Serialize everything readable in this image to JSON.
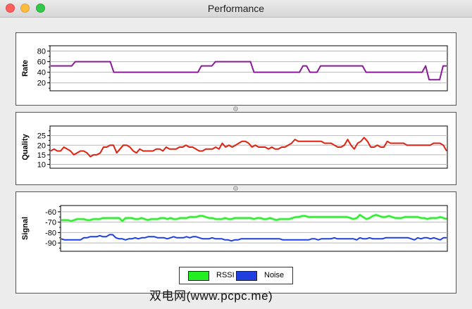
{
  "window": {
    "title": "Performance"
  },
  "legend": {
    "items": [
      {
        "label": "RSSI",
        "color": "#22ee22"
      },
      {
        "label": "Noise",
        "color": "#1f3fe0"
      }
    ]
  },
  "watermark": "双电网(www.pcpc.me)",
  "chart_data": [
    {
      "type": "line",
      "ylabel": "Rate",
      "yticks": [
        20,
        40,
        60,
        80
      ],
      "ylim": [
        5,
        90
      ],
      "grid": true,
      "series": [
        {
          "color": "#8a1a9a",
          "values": [
            52,
            52,
            52,
            52,
            52,
            52,
            52,
            60,
            60,
            60,
            60,
            60,
            60,
            60,
            60,
            60,
            60,
            60,
            40,
            40,
            40,
            40,
            40,
            40,
            40,
            40,
            40,
            40,
            40,
            40,
            40,
            40,
            40,
            40,
            40,
            40,
            40,
            40,
            40,
            40,
            40,
            40,
            40,
            52,
            52,
            52,
            52,
            60,
            60,
            60,
            60,
            60,
            60,
            60,
            60,
            60,
            60,
            60,
            40,
            40,
            40,
            40,
            40,
            40,
            40,
            40,
            40,
            40,
            40,
            40,
            40,
            40,
            52,
            52,
            40,
            40,
            40,
            52,
            52,
            52,
            52,
            52,
            52,
            52,
            52,
            52,
            52,
            52,
            52,
            52,
            40,
            40,
            40,
            40,
            40,
            40,
            40,
            40,
            40,
            40,
            40,
            40,
            40,
            40,
            40,
            40,
            40,
            52,
            26,
            26,
            26,
            26,
            52,
            52
          ]
        }
      ]
    },
    {
      "type": "line",
      "ylabel": "Quality",
      "yticks": [
        10,
        15,
        20,
        25
      ],
      "ylim": [
        8,
        30
      ],
      "grid": true,
      "series": [
        {
          "color": "#dd2211",
          "values": [
            17,
            18,
            17,
            17,
            19,
            18,
            17,
            15,
            16,
            17,
            17,
            16,
            14,
            15,
            15,
            16,
            19,
            19,
            20,
            20,
            16,
            18,
            20,
            20,
            19,
            17,
            16,
            18,
            17,
            17,
            17,
            17,
            18,
            18,
            17,
            19,
            18,
            18,
            18,
            19,
            19,
            20,
            19,
            19,
            18,
            17,
            17,
            18,
            18,
            18,
            19,
            18,
            21,
            19,
            20,
            19,
            20,
            21,
            22,
            22,
            21,
            19,
            20,
            19,
            19,
            19,
            18,
            19,
            18,
            18,
            19,
            19,
            20,
            21,
            23,
            22,
            22,
            22,
            22,
            22,
            22,
            22,
            22,
            21,
            21,
            21,
            20,
            19,
            19,
            20,
            23,
            20,
            18,
            21,
            22,
            24,
            22,
            19,
            19,
            20,
            19,
            19,
            22,
            21,
            21,
            21,
            21,
            21,
            20,
            20,
            20,
            20,
            20,
            20,
            20,
            20,
            21,
            21,
            21,
            20,
            17
          ]
        }
      ]
    },
    {
      "type": "line",
      "ylabel": "Signal",
      "yticks": [
        -60,
        -70,
        -80,
        -90
      ],
      "ylim": [
        -98,
        -54
      ],
      "grid": true,
      "series": [
        {
          "name": "RSSI",
          "color": "#22ee22",
          "values": [
            -68,
            -68,
            -68,
            -69,
            -68,
            -67,
            -67,
            -67,
            -68,
            -68,
            -67,
            -67,
            -67,
            -66,
            -66,
            -66,
            -66,
            -66,
            -66,
            -69,
            -66,
            -66,
            -66,
            -67,
            -67,
            -66,
            -67,
            -68,
            -67,
            -67,
            -67,
            -66,
            -66,
            -67,
            -66,
            -67,
            -67,
            -66,
            -66,
            -66,
            -65,
            -65,
            -65,
            -64,
            -64,
            -65,
            -66,
            -66,
            -67,
            -67,
            -67,
            -66,
            -67,
            -67,
            -66,
            -66,
            -66,
            -66,
            -66,
            -66,
            -67,
            -66,
            -66,
            -67,
            -67,
            -66,
            -67,
            -68,
            -67,
            -67,
            -67,
            -67,
            -66,
            -65,
            -65,
            -64,
            -64,
            -65,
            -65,
            -65,
            -65,
            -65,
            -65,
            -65,
            -65,
            -65,
            -65,
            -65,
            -65,
            -65,
            -66,
            -67,
            -66,
            -63,
            -65,
            -67,
            -66,
            -64,
            -63,
            -64,
            -65,
            -65,
            -64,
            -65,
            -66,
            -66,
            -66,
            -65,
            -65,
            -65,
            -65,
            -65,
            -66,
            -66,
            -67,
            -66,
            -66,
            -66,
            -65,
            -66,
            -67
          ]
        },
        {
          "name": "Noise",
          "color": "#1f3fe0",
          "values": [
            -86,
            -87,
            -87,
            -87,
            -87,
            -87,
            -87,
            -85,
            -85,
            -84,
            -84,
            -84,
            -83,
            -84,
            -84,
            -82,
            -82,
            -85,
            -86,
            -86,
            -87,
            -86,
            -86,
            -85,
            -86,
            -85,
            -85,
            -84,
            -84,
            -84,
            -85,
            -85,
            -85,
            -86,
            -85,
            -84,
            -85,
            -85,
            -85,
            -84,
            -85,
            -84,
            -84,
            -85,
            -86,
            -86,
            -86,
            -85,
            -86,
            -86,
            -86,
            -87,
            -87,
            -88,
            -87,
            -87,
            -86,
            -86,
            -86,
            -86,
            -86,
            -86,
            -86,
            -86,
            -86,
            -86,
            -86,
            -86,
            -86,
            -87,
            -87,
            -87,
            -87,
            -87,
            -87,
            -87,
            -87,
            -87,
            -86,
            -86,
            -87,
            -86,
            -86,
            -86,
            -86,
            -85,
            -86,
            -86,
            -86,
            -86,
            -86,
            -86,
            -87,
            -85,
            -86,
            -86,
            -85,
            -86,
            -86,
            -86,
            -86,
            -85,
            -85,
            -85,
            -85,
            -85,
            -85,
            -85,
            -85,
            -86,
            -87,
            -85,
            -86,
            -85,
            -85,
            -86,
            -85,
            -86,
            -87,
            -85,
            -85
          ]
        }
      ]
    }
  ]
}
